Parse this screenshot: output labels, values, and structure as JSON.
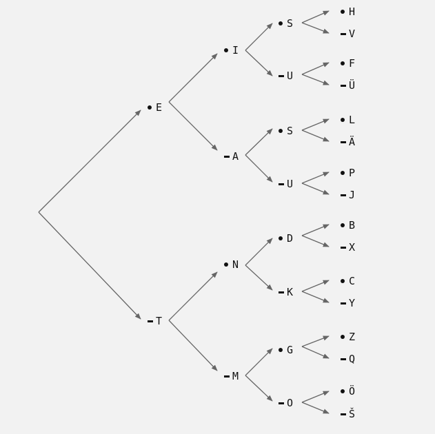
{
  "colors": {
    "background": "#f2f2f2",
    "text": "#111111",
    "edge": "#666666"
  },
  "tree": {
    "E": {
      "symbol": "dot",
      "letter": "E"
    },
    "T": {
      "symbol": "dash",
      "letter": "T"
    },
    "I": {
      "symbol": "dot",
      "letter": "I"
    },
    "A": {
      "symbol": "dash",
      "letter": "A"
    },
    "N": {
      "symbol": "dot",
      "letter": "N"
    },
    "M": {
      "symbol": "dash",
      "letter": "M"
    },
    "S1": {
      "symbol": "dot",
      "letter": "S"
    },
    "U1": {
      "symbol": "dash",
      "letter": "U"
    },
    "S2": {
      "symbol": "dot",
      "letter": "S"
    },
    "U2": {
      "symbol": "dash",
      "letter": "U"
    },
    "D": {
      "symbol": "dot",
      "letter": "D"
    },
    "K": {
      "symbol": "dash",
      "letter": "K"
    },
    "G": {
      "symbol": "dot",
      "letter": "G"
    },
    "O": {
      "symbol": "dash",
      "letter": "O"
    },
    "H": {
      "symbol": "dot",
      "letter": "H"
    },
    "V": {
      "symbol": "dash",
      "letter": "V"
    },
    "F": {
      "symbol": "dot",
      "letter": "F"
    },
    "UE": {
      "symbol": "dash",
      "letter": "Ü"
    },
    "L": {
      "symbol": "dot",
      "letter": "L"
    },
    "AE": {
      "symbol": "dash",
      "letter": "Ä"
    },
    "P": {
      "symbol": "dot",
      "letter": "P"
    },
    "J": {
      "symbol": "dash",
      "letter": "J"
    },
    "B": {
      "symbol": "dot",
      "letter": "B"
    },
    "X": {
      "symbol": "dash",
      "letter": "X"
    },
    "C": {
      "symbol": "dot",
      "letter": "C"
    },
    "Y": {
      "symbol": "dash",
      "letter": "Y"
    },
    "Z": {
      "symbol": "dot",
      "letter": "Z"
    },
    "Q": {
      "symbol": "dash",
      "letter": "Q"
    },
    "OE": {
      "symbol": "dot",
      "letter": "Ö"
    },
    "SH": {
      "symbol": "dash",
      "letter": "Š"
    }
  }
}
